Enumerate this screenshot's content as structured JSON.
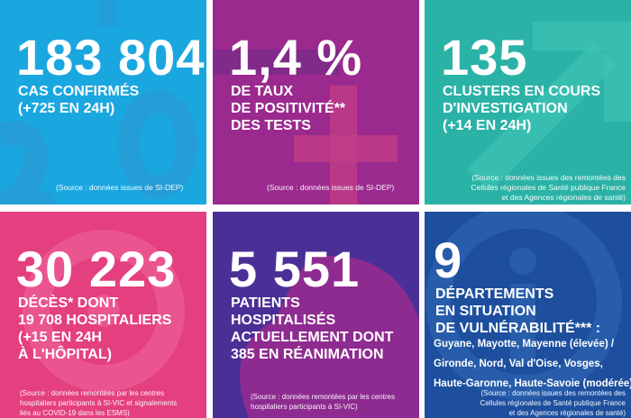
{
  "tiles": {
    "cases": {
      "value": "183 804",
      "label_lines": [
        "CAS CONFIRMÉS",
        "(+725 EN 24H)"
      ],
      "source": "(Source : données issues de SI-DEP)",
      "color": "#1aa7e0"
    },
    "positivity": {
      "value": "1,4 %",
      "label_lines": [
        "DE TAUX",
        "DE POSITIVITÉ**",
        "DES TESTS"
      ],
      "source": "(Source : données issues de SI-DEP)",
      "color": "#9b2a8e"
    },
    "clusters": {
      "value": "135",
      "label_lines": [
        "CLUSTERS EN COURS",
        "D'INVESTIGATION",
        "(+14 EN 24H)"
      ],
      "source_lines": [
        "(Source : données issues des remontées des",
        "Cellules régionales de Santé publique France",
        "et des Agences régionales de santé)"
      ],
      "color": "#2bb2a6"
    },
    "deaths": {
      "value": "30 223",
      "label_lines": [
        "DÉCÈS* DONT",
        "19 708 HOSPITALIERS",
        "(+15 EN 24H",
        "À L'HÔPITAL)"
      ],
      "source_lines": [
        "(Source : données remontées par les centres",
        "hospitaliers participants à SI-VIC et signalements",
        "liés au COVID-19 dans les ESMS)"
      ],
      "color": "#e43f7e"
    },
    "hospitalized": {
      "value": "5 551",
      "label_lines": [
        "PATIENTS",
        "HOSPITALISÉS",
        "ACTUELLEMENT DONT",
        "385 EN RÉANIMATION"
      ],
      "source_lines": [
        "(Source : données remontées par les centres",
        "hospitaliers participants à SI-VIC)"
      ],
      "color": "#4a3096"
    },
    "departments": {
      "value": "9",
      "label_lines": [
        "DÉPARTEMENTS",
        "EN SITUATION",
        "DE VULNÉRABILITÉ*** :"
      ],
      "detail_lines": [
        "Guyane, Mayotte, Mayenne (élevée) /",
        "Gironde, Nord, Val d'Oise, Vosges,",
        "Haute-Garonne, Haute-Savoie (modérée)"
      ],
      "source_lines": [
        "(Source : données issues des remontées des",
        "Cellules régionales de Santé publique France",
        "et des Agences régionales de santé)"
      ],
      "color": "#1d4f9e"
    }
  }
}
